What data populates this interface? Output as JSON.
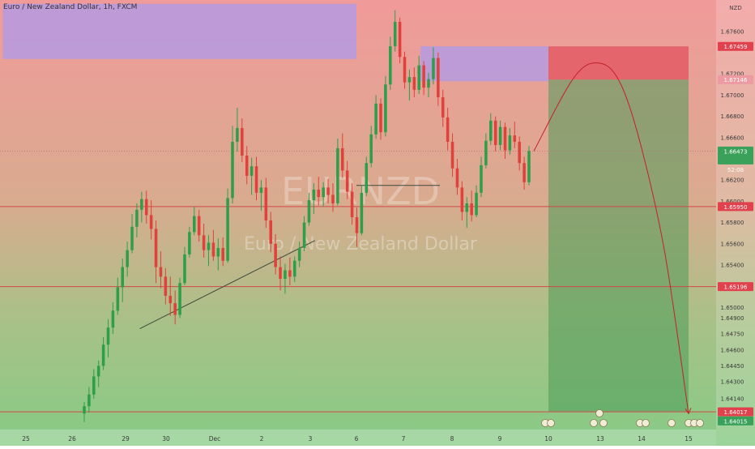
{
  "header": {
    "title": "Euro / New Zealand Dollar, 1h, FXCM"
  },
  "watermark": {
    "symbol": "EURNZD",
    "name": "Euro / New Zealand Dollar"
  },
  "currency_label": "NZD",
  "price_badge": {
    "price": "1.66473",
    "countdown": "52:08"
  },
  "colors": {
    "bull": "#2e9e4a",
    "bear": "#e0413a",
    "zone": "#b59ae0",
    "level": "#d04a48",
    "stop": "#e35a64",
    "target": "#4d9a58"
  },
  "chart_data": {
    "type": "candlestick",
    "ylim": [
      1.6385,
      1.6785
    ],
    "x_ticks": [
      {
        "label": "25",
        "x": 0
      },
      {
        "label": "26",
        "x": 1
      },
      {
        "label": "29",
        "x": 2
      },
      {
        "label": "30",
        "x": 3
      },
      {
        "label": "Dec",
        "x": 4
      },
      {
        "label": "2",
        "x": 5
      },
      {
        "label": "3",
        "x": 6
      },
      {
        "label": "6",
        "x": 7
      },
      {
        "label": "7",
        "x": 8
      },
      {
        "label": "8",
        "x": 9
      },
      {
        "label": "9",
        "x": 10
      },
      {
        "label": "10",
        "x": 11
      },
      {
        "label": "13",
        "x": 12
      },
      {
        "label": "14",
        "x": 13
      },
      {
        "label": "15",
        "x": 14
      }
    ],
    "y_ticks": [
      "1.67600",
      "1.67200",
      "1.67000",
      "1.66800",
      "1.66600",
      "1.66200",
      "1.66000",
      "1.65800",
      "1.65600",
      "1.65400",
      "1.65000",
      "1.64900",
      "1.64750",
      "1.64600",
      "1.64450",
      "1.64300",
      "1.64140"
    ],
    "price_labels": [
      {
        "value": 1.67459,
        "label": "1.67459",
        "kind": "stop"
      },
      {
        "value": 1.67146,
        "label": "1.67146",
        "kind": "faint"
      },
      {
        "value": 1.66473,
        "label": "1.66473",
        "kind": "current"
      },
      {
        "value": 1.6595,
        "label": "1.65950",
        "kind": "level"
      },
      {
        "value": 1.65196,
        "label": "1.65196",
        "kind": "level"
      },
      {
        "value": 1.64017,
        "label": "1.64017",
        "kind": "level"
      },
      {
        "value": 1.64015,
        "label": "1.64015",
        "kind": "target"
      }
    ],
    "horizontal_levels": [
      1.66473,
      1.6595,
      1.65196,
      1.64017
    ],
    "zones": [
      {
        "x0": -0.5,
        "x1": 7.0,
        "y0": 1.6734,
        "y1": 1.6786
      },
      {
        "x0": 8.35,
        "x1": 11.0,
        "y0": 1.6713,
        "y1": 1.6746
      }
    ],
    "position": {
      "x0": 11.0,
      "x1": 14.0,
      "entry": 1.67146,
      "stop": 1.67459,
      "target": 1.64017
    },
    "trendlines": [
      {
        "x0": 2.35,
        "y0": 1.648,
        "x1": 6.1,
        "y1": 1.6563
      },
      {
        "x0": 7.0,
        "y0": 1.6615,
        "x1": 8.75,
        "y1": 1.6615
      }
    ],
    "projection": [
      [
        10.7,
        1.66473
      ],
      [
        11.5,
        1.6717
      ],
      [
        12.0,
        1.673
      ],
      [
        12.5,
        1.671
      ],
      [
        13.0,
        1.665
      ],
      [
        13.5,
        1.655
      ],
      [
        14.0,
        1.64
      ]
    ],
    "candles": [
      [
        1.64,
        1.6411,
        1.6392,
        1.6407
      ],
      [
        1.6407,
        1.6425,
        1.6401,
        1.6418
      ],
      [
        1.6418,
        1.6442,
        1.6414,
        1.6435
      ],
      [
        1.6435,
        1.645,
        1.6425,
        1.6445
      ],
      [
        1.6445,
        1.6472,
        1.6441,
        1.6465
      ],
      [
        1.6465,
        1.6489,
        1.6453,
        1.6481
      ],
      [
        1.6481,
        1.6505,
        1.6475,
        1.6497
      ],
      [
        1.6497,
        1.6528,
        1.6493,
        1.6519
      ],
      [
        1.6519,
        1.6546,
        1.6505,
        1.6538
      ],
      [
        1.6538,
        1.6562,
        1.6529,
        1.6554
      ],
      [
        1.6554,
        1.6588,
        1.6551,
        1.6576
      ],
      [
        1.6576,
        1.6598,
        1.6566,
        1.6592
      ],
      [
        1.6592,
        1.6609,
        1.658,
        1.6602
      ],
      [
        1.6602,
        1.661,
        1.6579,
        1.6587
      ],
      [
        1.6587,
        1.6601,
        1.6564,
        1.6574
      ],
      [
        1.6574,
        1.6582,
        1.6523,
        1.6538
      ],
      [
        1.6538,
        1.6553,
        1.6518,
        1.6529
      ],
      [
        1.6529,
        1.6537,
        1.6503,
        1.6511
      ],
      [
        1.6511,
        1.6529,
        1.6492,
        1.6504
      ],
      [
        1.6504,
        1.6516,
        1.6484,
        1.6493
      ],
      [
        1.6493,
        1.6528,
        1.649,
        1.6523
      ],
      [
        1.6523,
        1.6557,
        1.6521,
        1.655
      ],
      [
        1.655,
        1.6576,
        1.6547,
        1.6571
      ],
      [
        1.6571,
        1.6595,
        1.6568,
        1.6586
      ],
      [
        1.6586,
        1.6592,
        1.6562,
        1.6568
      ],
      [
        1.6568,
        1.6579,
        1.6547,
        1.6554
      ],
      [
        1.6554,
        1.6568,
        1.6539,
        1.6561
      ],
      [
        1.6561,
        1.6573,
        1.6544,
        1.6548
      ],
      [
        1.6548,
        1.6565,
        1.6535,
        1.6556
      ],
      [
        1.6556,
        1.6566,
        1.6539,
        1.6544
      ],
      [
        1.6544,
        1.6612,
        1.6542,
        1.6603
      ],
      [
        1.6603,
        1.6671,
        1.6598,
        1.6656
      ],
      [
        1.6656,
        1.6688,
        1.6647,
        1.6669
      ],
      [
        1.6669,
        1.6678,
        1.6637,
        1.6643
      ],
      [
        1.6643,
        1.6652,
        1.6616,
        1.6624
      ],
      [
        1.6624,
        1.6641,
        1.6606,
        1.6633
      ],
      [
        1.6633,
        1.6642,
        1.6601,
        1.6608
      ],
      [
        1.6608,
        1.662,
        1.6591,
        1.6613
      ],
      [
        1.6613,
        1.6622,
        1.6575,
        1.6582
      ],
      [
        1.6582,
        1.659,
        1.6552,
        1.656
      ],
      [
        1.656,
        1.6569,
        1.6531,
        1.6538
      ],
      [
        1.6538,
        1.6548,
        1.6516,
        1.6527
      ],
      [
        1.6527,
        1.6541,
        1.6513,
        1.6535
      ],
      [
        1.6535,
        1.6547,
        1.6521,
        1.6529
      ],
      [
        1.6529,
        1.6548,
        1.6524,
        1.6544
      ],
      [
        1.6544,
        1.6562,
        1.6538,
        1.6556
      ],
      [
        1.6556,
        1.6586,
        1.6553,
        1.658
      ],
      [
        1.658,
        1.6608,
        1.6577,
        1.6601
      ],
      [
        1.6601,
        1.6617,
        1.6588,
        1.6611
      ],
      [
        1.6611,
        1.6623,
        1.6596,
        1.6604
      ],
      [
        1.6604,
        1.6618,
        1.6595,
        1.6613
      ],
      [
        1.6613,
        1.6621,
        1.6598,
        1.6606
      ],
      [
        1.6606,
        1.6617,
        1.659,
        1.6598
      ],
      [
        1.6598,
        1.6659,
        1.6596,
        1.665
      ],
      [
        1.665,
        1.6664,
        1.6622,
        1.6629
      ],
      [
        1.6629,
        1.6638,
        1.6602,
        1.6609
      ],
      [
        1.6609,
        1.6617,
        1.6578,
        1.6585
      ],
      [
        1.6585,
        1.6594,
        1.6557,
        1.657
      ],
      [
        1.657,
        1.6615,
        1.6568,
        1.6608
      ],
      [
        1.6608,
        1.6642,
        1.6605,
        1.6636
      ],
      [
        1.6636,
        1.6671,
        1.6632,
        1.6663
      ],
      [
        1.6663,
        1.67,
        1.6659,
        1.6692
      ],
      [
        1.6692,
        1.6697,
        1.6658,
        1.6665
      ],
      [
        1.6665,
        1.6718,
        1.6661,
        1.671
      ],
      [
        1.671,
        1.6755,
        1.6705,
        1.6746
      ],
      [
        1.6746,
        1.678,
        1.6741,
        1.6769
      ],
      [
        1.6769,
        1.6773,
        1.673,
        1.6736
      ],
      [
        1.6736,
        1.6741,
        1.6706,
        1.6712
      ],
      [
        1.6712,
        1.6724,
        1.6695,
        1.6717
      ],
      [
        1.6717,
        1.6726,
        1.6698,
        1.6705
      ],
      [
        1.6705,
        1.6737,
        1.6701,
        1.6728
      ],
      [
        1.6728,
        1.6732,
        1.67,
        1.6707
      ],
      [
        1.6707,
        1.6721,
        1.6698,
        1.6715
      ],
      [
        1.6715,
        1.6745,
        1.671,
        1.6735
      ],
      [
        1.6735,
        1.674,
        1.669,
        1.6698
      ],
      [
        1.6698,
        1.6705,
        1.667,
        1.6679
      ],
      [
        1.6679,
        1.6688,
        1.6648,
        1.6656
      ],
      [
        1.6656,
        1.6664,
        1.6623,
        1.6631
      ],
      [
        1.6631,
        1.664,
        1.6606,
        1.6613
      ],
      [
        1.6613,
        1.6619,
        1.6582,
        1.659
      ],
      [
        1.659,
        1.6604,
        1.6575,
        1.6598
      ],
      [
        1.6598,
        1.661,
        1.6581,
        1.6587
      ],
      [
        1.6587,
        1.6615,
        1.6585,
        1.6608
      ],
      [
        1.6608,
        1.6642,
        1.6604,
        1.6634
      ],
      [
        1.6634,
        1.6664,
        1.6631,
        1.6657
      ],
      [
        1.6657,
        1.6683,
        1.6653,
        1.6676
      ],
      [
        1.6676,
        1.668,
        1.6647,
        1.6653
      ],
      [
        1.6653,
        1.6676,
        1.6648,
        1.667
      ],
      [
        1.667,
        1.6674,
        1.664,
        1.6648
      ],
      [
        1.6648,
        1.6669,
        1.6644,
        1.6662
      ],
      [
        1.6662,
        1.6675,
        1.665,
        1.6656
      ],
      [
        1.6656,
        1.6661,
        1.6629,
        1.6636
      ],
      [
        1.6636,
        1.6642,
        1.6611,
        1.6618
      ],
      [
        1.6618,
        1.6652,
        1.6615,
        1.66473
      ]
    ]
  }
}
